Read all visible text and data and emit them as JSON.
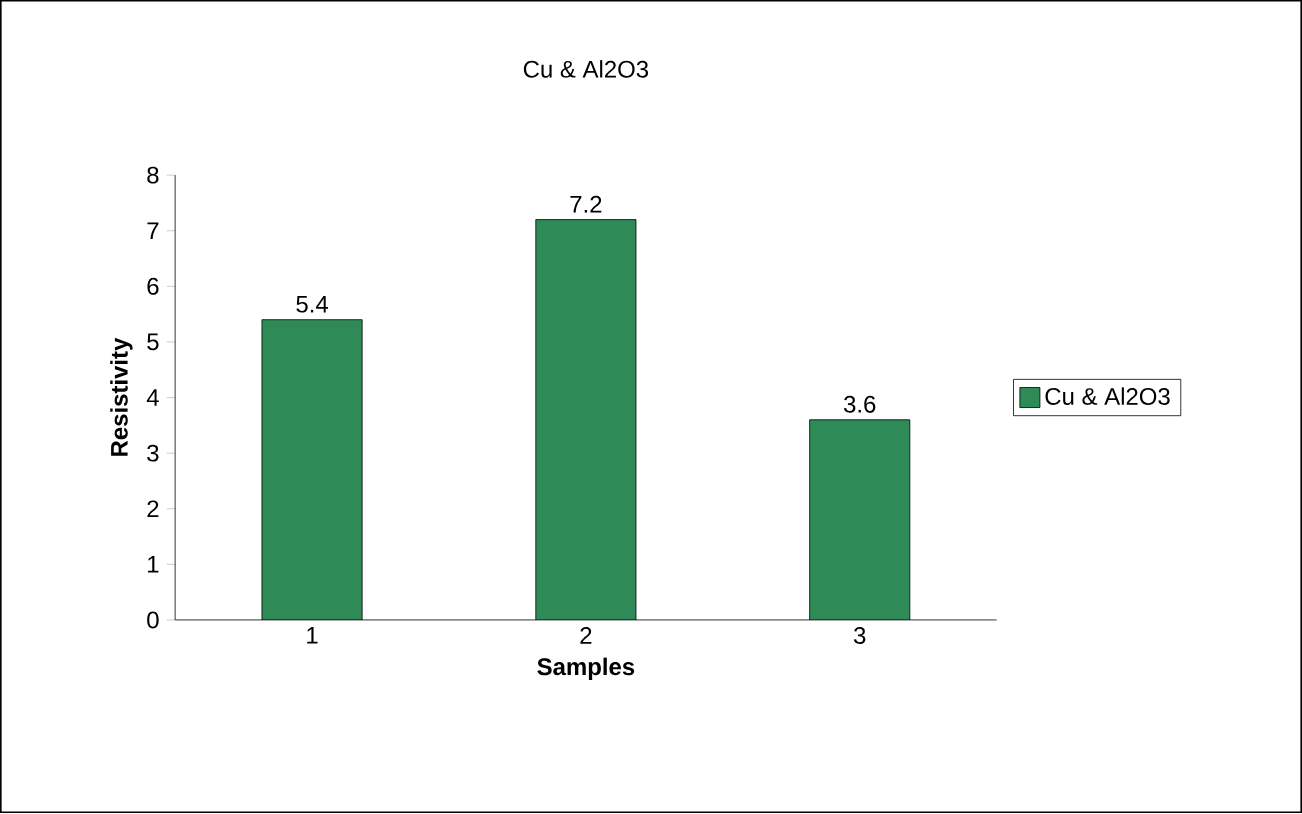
{
  "chart_data": {
    "type": "bar",
    "title": "Cu & Al2O3",
    "xlabel": "Samples",
    "ylabel": "Resistivity",
    "categories": [
      "1",
      "2",
      "3"
    ],
    "series": [
      {
        "name": "Cu & Al2O3",
        "color": "#2e8b57",
        "values": [
          5.4,
          7.2,
          3.6
        ]
      }
    ],
    "ylim": [
      0,
      8
    ],
    "yticks": [
      0,
      1,
      2,
      3,
      4,
      5,
      6,
      7,
      8
    ],
    "data_labels": true,
    "legend": "right"
  }
}
